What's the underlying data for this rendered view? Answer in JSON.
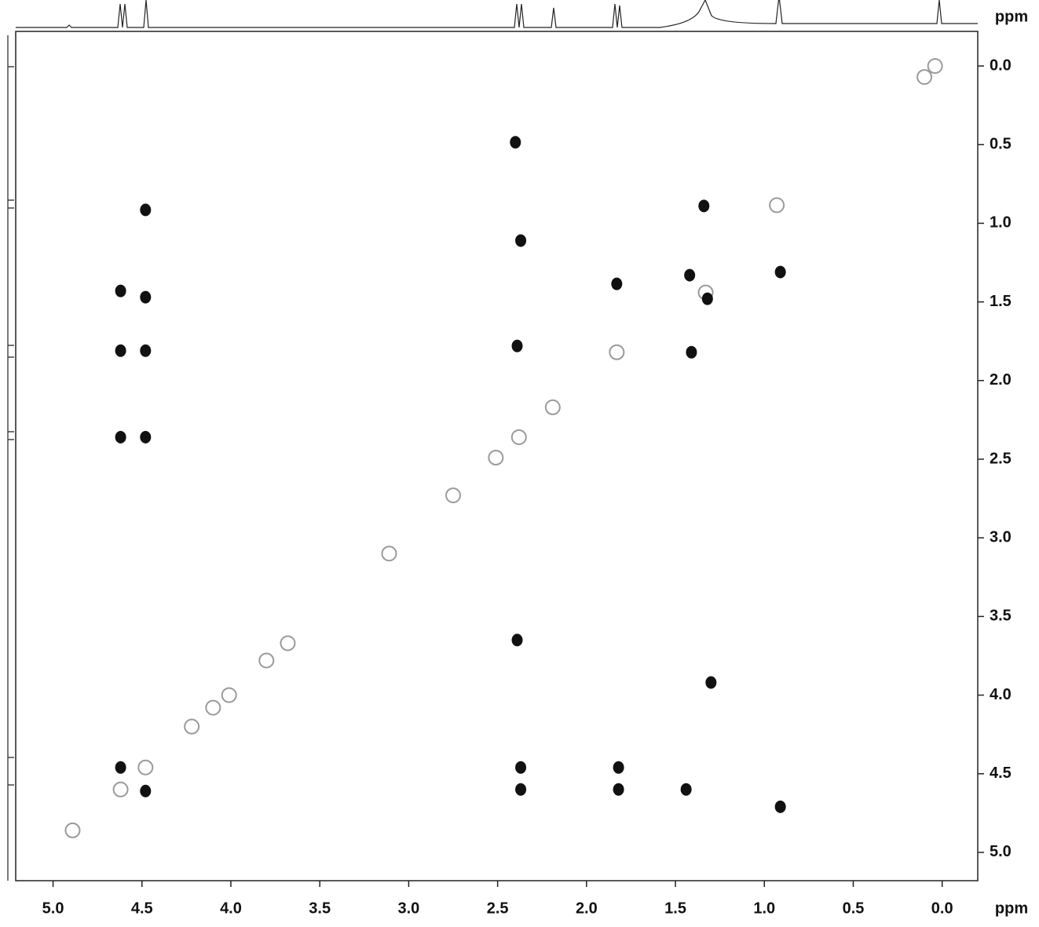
{
  "chart_data": {
    "type": "scatter",
    "x_label": "ppm",
    "y_label": "ppm",
    "xlim": [
      5.21,
      -0.2
    ],
    "ylim": [
      -0.22,
      5.18
    ],
    "xticks": [
      {
        "value": 5,
        "label": "5.0"
      },
      {
        "value": 4.5,
        "label": "4.5"
      },
      {
        "value": 4,
        "label": "4.0"
      },
      {
        "value": 3.5,
        "label": "3.5"
      },
      {
        "value": 3,
        "label": "3.0"
      },
      {
        "value": 2.5,
        "label": "2.5"
      },
      {
        "value": 2,
        "label": "2.0"
      },
      {
        "value": 1.5,
        "label": "1.5"
      },
      {
        "value": 1,
        "label": "1.0"
      },
      {
        "value": 0.5,
        "label": "0.5"
      },
      {
        "value": 0,
        "label": "0.0"
      }
    ],
    "yticks": [
      {
        "value": 0,
        "label": "0.0"
      },
      {
        "value": 0.5,
        "label": "0.5"
      },
      {
        "value": 1,
        "label": "1.0"
      },
      {
        "value": 1.5,
        "label": "1.5"
      },
      {
        "value": 2,
        "label": "2.0"
      },
      {
        "value": 2.5,
        "label": "2.5"
      },
      {
        "value": 3,
        "label": "3.0"
      },
      {
        "value": 3.5,
        "label": "3.5"
      },
      {
        "value": 4,
        "label": "4.0"
      },
      {
        "value": 4.5,
        "label": "4.5"
      },
      {
        "value": 5,
        "label": "5.0"
      }
    ],
    "series": [
      {
        "color": "#9a9a9a",
        "x": [
          0.04,
          0.1,
          0.93,
          1.33,
          1.83,
          2.19,
          2.38,
          2.51,
          2.75,
          3.11,
          3.68,
          3.8,
          4.01,
          4.1,
          4.22,
          4.48,
          4.62,
          4.89
        ],
        "values": [
          0.0,
          0.07,
          0.885,
          1.44,
          1.82,
          2.17,
          2.36,
          2.49,
          2.73,
          3.1,
          3.67,
          3.78,
          4.0,
          4.08,
          4.2,
          4.46,
          4.6,
          4.86
        ]
      },
      {
        "color": "#111111",
        "x": [
          2.4,
          4.48,
          2.37,
          1.34,
          1.83,
          1.42,
          1.32,
          0.91,
          4.62,
          4.48,
          4.62,
          4.48,
          2.39,
          1.41,
          4.62,
          4.48,
          2.39,
          1.3,
          4.62,
          2.37,
          1.82,
          4.48,
          2.37,
          1.82,
          1.44,
          0.91
        ],
        "values": [
          0.485,
          0.915,
          1.11,
          0.89,
          1.385,
          1.33,
          1.48,
          1.31,
          1.43,
          1.47,
          1.81,
          1.81,
          1.78,
          1.82,
          2.36,
          2.36,
          3.65,
          3.92,
          4.46,
          4.46,
          4.46,
          4.61,
          4.6,
          4.6,
          4.6,
          4.71
        ]
      }
    ]
  }
}
